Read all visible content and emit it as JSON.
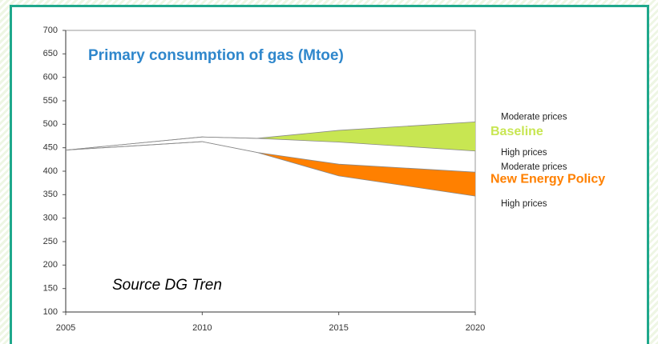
{
  "chart_data": {
    "type": "band",
    "title": "Primary consumption of gas (Mtoe)",
    "annotation": "Source DG Tren",
    "x": [
      2005,
      2010,
      2012,
      2015,
      2020
    ],
    "xlim": [
      2005,
      2020
    ],
    "xticks": [
      2005,
      2010,
      2015,
      2020
    ],
    "ylim": [
      100,
      700
    ],
    "yticks": [
      100,
      150,
      200,
      250,
      300,
      350,
      400,
      450,
      500,
      550,
      600,
      650,
      700
    ],
    "series": [
      {
        "name": "Baseline",
        "color": "#c8e652",
        "upper": {
          "name": "Moderate prices",
          "values": [
            445,
            473,
            470,
            487,
            505
          ]
        },
        "lower": {
          "name": "High prices",
          "values": [
            445,
            473,
            470,
            462,
            443
          ]
        }
      },
      {
        "name": "New Energy Policy",
        "color": "#ff8000",
        "upper": {
          "name": "Moderate prices",
          "values": [
            445,
            463,
            440,
            415,
            398
          ]
        },
        "lower": {
          "name": "High prices",
          "values": [
            445,
            463,
            440,
            390,
            347
          ]
        }
      }
    ]
  }
}
